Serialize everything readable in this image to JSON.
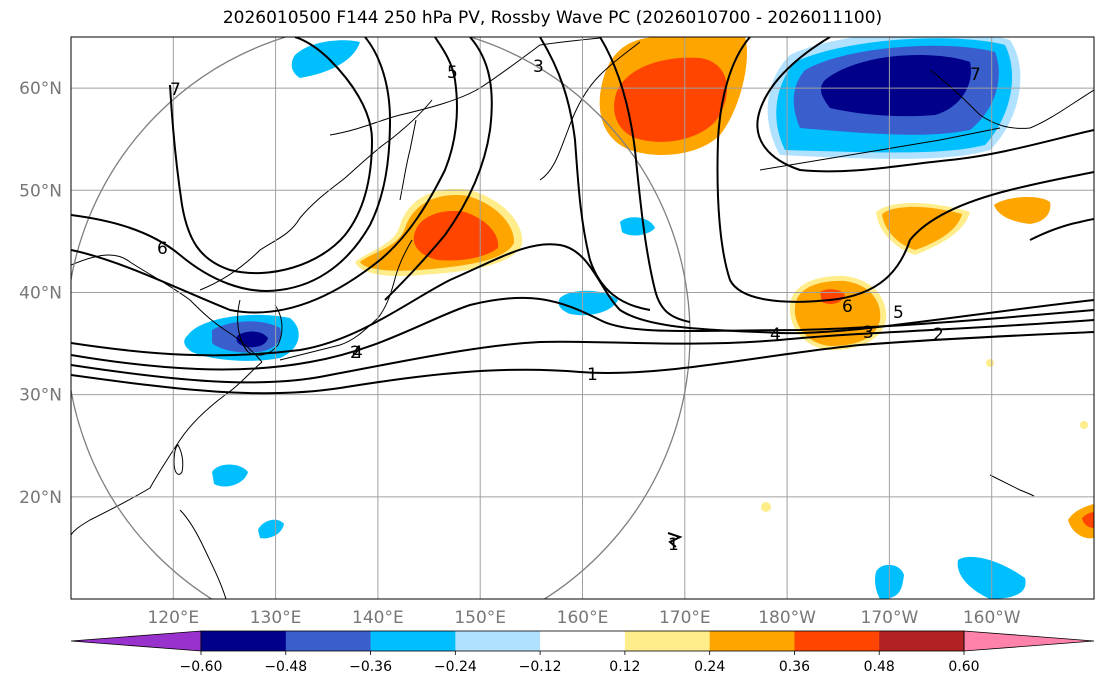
{
  "title": "2026010500 F144 250 hPa PV, Rossby Wave PC (2026010700 - 2026011100)",
  "map": {
    "projection": "PlateCarree",
    "lon_range": [
      110,
      210
    ],
    "lat_range": [
      10,
      65
    ],
    "lon_ticks": [
      {
        "lon": 120,
        "label": "120°E"
      },
      {
        "lon": 130,
        "label": "130°E"
      },
      {
        "lon": 140,
        "label": "140°E"
      },
      {
        "lon": 150,
        "label": "150°E"
      },
      {
        "lon": 160,
        "label": "160°E"
      },
      {
        "lon": 170,
        "label": "170°E"
      },
      {
        "lon": 180,
        "label": "180°W"
      },
      {
        "lon": 190,
        "label": "170°W"
      },
      {
        "lon": 200,
        "label": "160°W"
      }
    ],
    "lat_ticks": [
      {
        "lat": 20,
        "label": "20°N"
      },
      {
        "lat": 30,
        "label": "30°N"
      },
      {
        "lat": 40,
        "label": "40°N"
      },
      {
        "lat": 50,
        "label": "50°N"
      },
      {
        "lat": 60,
        "label": "60°N"
      }
    ],
    "grid": true,
    "circle": {
      "center_lon": 139.5,
      "center_lat": 35.5,
      "radius_deg": 31
    }
  },
  "colorbar": {
    "extend": "both",
    "colors": [
      "#9932cc",
      "#00008b",
      "#3a5fcd",
      "#00bfff",
      "#b0e2ff",
      "#ffffff",
      "#ffec8b",
      "#ffa500",
      "#ff4500",
      "#b22222",
      "#ff82ab"
    ],
    "labels": [
      "−0.60",
      "−0.48",
      "−0.36",
      "−0.24",
      "−0.12",
      "0.12",
      "0.24",
      "0.36",
      "0.48",
      "0.60"
    ]
  },
  "contour_labels": [
    "1",
    "2",
    "3",
    "4",
    "5",
    "6",
    "7",
    "1",
    "2",
    "3",
    "4",
    "5",
    "6",
    "7"
  ]
}
